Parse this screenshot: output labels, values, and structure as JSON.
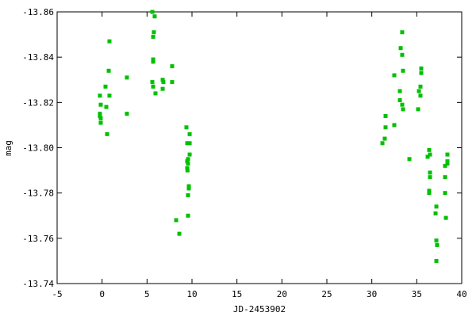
{
  "chart_data": {
    "type": "scatter",
    "title": "",
    "xlabel": "JD-2453902",
    "ylabel": "mag",
    "xlim": [
      -5,
      40
    ],
    "ylim": [
      -13.86,
      -13.74
    ],
    "y_inverted": true,
    "grid": false,
    "legend": "none",
    "marker": "square",
    "color": "#00c000",
    "x_ticks": [
      "-5",
      "0",
      "5",
      "10",
      "15",
      "20",
      "25",
      "30",
      "35",
      "40"
    ],
    "y_ticks": [
      "-13.86",
      "-13.84",
      "-13.82",
      "-13.80",
      "-13.78",
      "-13.76",
      "-13.74"
    ],
    "points": [
      [
        -0.24,
        -13.823
      ],
      [
        -0.15,
        -13.819
      ],
      [
        -0.24,
        -13.815
      ],
      [
        -0.24,
        -13.814
      ],
      [
        -0.15,
        -13.813
      ],
      [
        -0.15,
        -13.811
      ],
      [
        0.38,
        -13.827
      ],
      [
        0.47,
        -13.818
      ],
      [
        0.56,
        -13.806
      ],
      [
        0.74,
        -13.834
      ],
      [
        0.82,
        -13.823
      ],
      [
        0.82,
        -13.847
      ],
      [
        2.76,
        -13.831
      ],
      [
        2.76,
        -13.815
      ],
      [
        5.59,
        -13.86
      ],
      [
        5.85,
        -13.858
      ],
      [
        5.76,
        -13.851
      ],
      [
        5.68,
        -13.849
      ],
      [
        5.68,
        -13.839
      ],
      [
        5.68,
        -13.838
      ],
      [
        5.59,
        -13.829
      ],
      [
        5.68,
        -13.827
      ],
      [
        5.94,
        -13.824
      ],
      [
        7.79,
        -13.836
      ],
      [
        6.74,
        -13.83
      ],
      [
        6.82,
        -13.829
      ],
      [
        6.74,
        -13.826
      ],
      [
        7.79,
        -13.829
      ],
      [
        8.24,
        -13.768
      ],
      [
        8.59,
        -13.762
      ],
      [
        9.38,
        -13.809
      ],
      [
        9.74,
        -13.806
      ],
      [
        9.47,
        -13.802
      ],
      [
        9.74,
        -13.802
      ],
      [
        9.74,
        -13.797
      ],
      [
        9.56,
        -13.795
      ],
      [
        9.47,
        -13.794
      ],
      [
        9.56,
        -13.793
      ],
      [
        9.47,
        -13.791
      ],
      [
        9.5,
        -13.79
      ],
      [
        9.65,
        -13.783
      ],
      [
        9.65,
        -13.782
      ],
      [
        9.56,
        -13.779
      ],
      [
        9.56,
        -13.77
      ],
      [
        33.38,
        -13.851
      ],
      [
        33.21,
        -13.844
      ],
      [
        33.38,
        -13.841
      ],
      [
        35.5,
        -13.835
      ],
      [
        35.5,
        -13.833
      ],
      [
        33.47,
        -13.834
      ],
      [
        32.5,
        -13.832
      ],
      [
        35.41,
        -13.827
      ],
      [
        33.12,
        -13.825
      ],
      [
        35.24,
        -13.825
      ],
      [
        35.41,
        -13.823
      ],
      [
        33.12,
        -13.821
      ],
      [
        33.38,
        -13.819
      ],
      [
        33.47,
        -13.817
      ],
      [
        35.15,
        -13.817
      ],
      [
        31.53,
        -13.814
      ],
      [
        31.53,
        -13.809
      ],
      [
        32.5,
        -13.81
      ],
      [
        31.44,
        -13.804
      ],
      [
        31.18,
        -13.802
      ],
      [
        34.18,
        -13.795
      ],
      [
        36.38,
        -13.799
      ],
      [
        36.47,
        -13.797
      ],
      [
        36.21,
        -13.796
      ],
      [
        38.41,
        -13.797
      ],
      [
        38.41,
        -13.794
      ],
      [
        38.41,
        -13.793
      ],
      [
        38.15,
        -13.792
      ],
      [
        36.47,
        -13.789
      ],
      [
        36.47,
        -13.787
      ],
      [
        38.15,
        -13.787
      ],
      [
        36.38,
        -13.781
      ],
      [
        36.38,
        -13.78
      ],
      [
        38.15,
        -13.78
      ],
      [
        37.18,
        -13.774
      ],
      [
        37.09,
        -13.771
      ],
      [
        38.24,
        -13.769
      ],
      [
        37.18,
        -13.759
      ],
      [
        37.26,
        -13.757
      ],
      [
        37.18,
        -13.75
      ]
    ]
  }
}
